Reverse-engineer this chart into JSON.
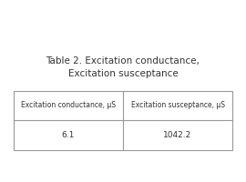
{
  "title_line1": "Table 2. Excitation conductance,",
  "title_line2": "Excitation susceptance",
  "title_fontsize": 7.5,
  "col1_header": "Excitation conductance, μS",
  "col2_header": "Excitation susceptance, μS",
  "col1_value": "6.1",
  "col2_value": "1042.2",
  "header_fontsize": 5.5,
  "value_fontsize": 6.5,
  "background_color": "#ffffff",
  "table_edge_color": "#999999",
  "text_color": "#333333"
}
